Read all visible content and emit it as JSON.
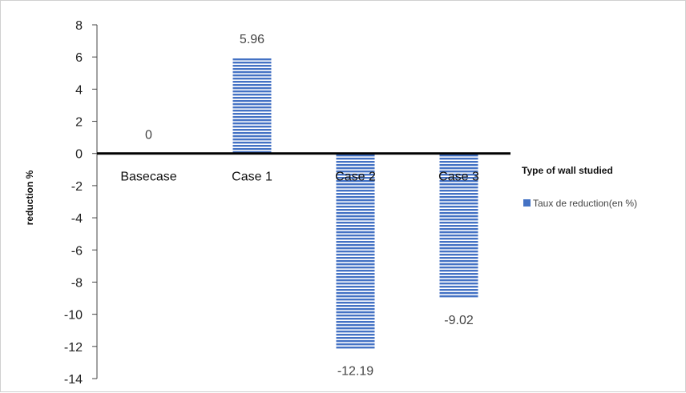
{
  "chart_data": {
    "type": "bar",
    "categories": [
      "Basecase",
      "Case 1",
      "Case 2",
      "Case 3"
    ],
    "series": [
      {
        "name": "Taux de reduction(en %)",
        "values": [
          0,
          5.96,
          -12.19,
          -9.02
        ],
        "color": "#4472c4"
      }
    ],
    "data_labels": [
      "0",
      "5.96",
      "-12.19",
      "-9.02"
    ],
    "xlabel": "Type of wall studied",
    "ylabel": "reduction %",
    "ylim": [
      -14,
      8
    ],
    "yticks": [
      "8",
      "6",
      "4",
      "2",
      "0",
      "-2",
      "-4",
      "-6",
      "-8",
      "-10",
      "-12",
      "-14"
    ],
    "grid": false,
    "legend_position": "right",
    "bar_pattern": "horizontal-stripes"
  }
}
